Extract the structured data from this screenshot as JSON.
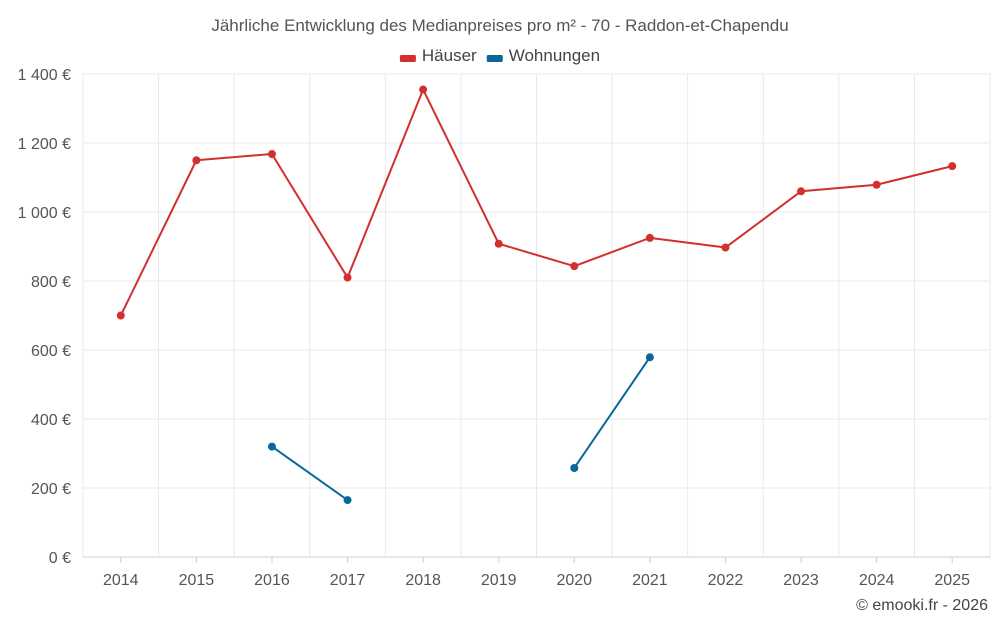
{
  "chart_data": {
    "type": "line",
    "title": "Jährliche Entwicklung des Medianpreises pro m² - 70 - Raddon-et-Chapendu",
    "categories": [
      "2014",
      "2015",
      "2016",
      "2017",
      "2018",
      "2019",
      "2020",
      "2021",
      "2022",
      "2023",
      "2024",
      "2025"
    ],
    "series": [
      {
        "name": "Häuser",
        "color": "#d32f2f",
        "values": [
          700,
          1150,
          1168,
          810,
          1355,
          908,
          843,
          925,
          897,
          1060,
          1079,
          1133
        ]
      },
      {
        "name": "Wohnungen",
        "color": "#08689a",
        "values": [
          null,
          null,
          320,
          165,
          null,
          null,
          258,
          579,
          null,
          null,
          null,
          null
        ]
      }
    ],
    "y_ticks": [
      {
        "value": 0,
        "label": "0 €"
      },
      {
        "value": 200,
        "label": "200 €"
      },
      {
        "value": 400,
        "label": "400 €"
      },
      {
        "value": 600,
        "label": "600 €"
      },
      {
        "value": 800,
        "label": "800 €"
      },
      {
        "value": 1000,
        "label": "1 000 €"
      },
      {
        "value": 1200,
        "label": "1 200 €"
      },
      {
        "value": 1400,
        "label": "1 400 €"
      }
    ],
    "ylim": [
      0,
      1400
    ],
    "xlabel": "",
    "ylabel": "",
    "legend_position": "top-center",
    "grid": true
  },
  "credit": "© emooki.fr - 2026"
}
